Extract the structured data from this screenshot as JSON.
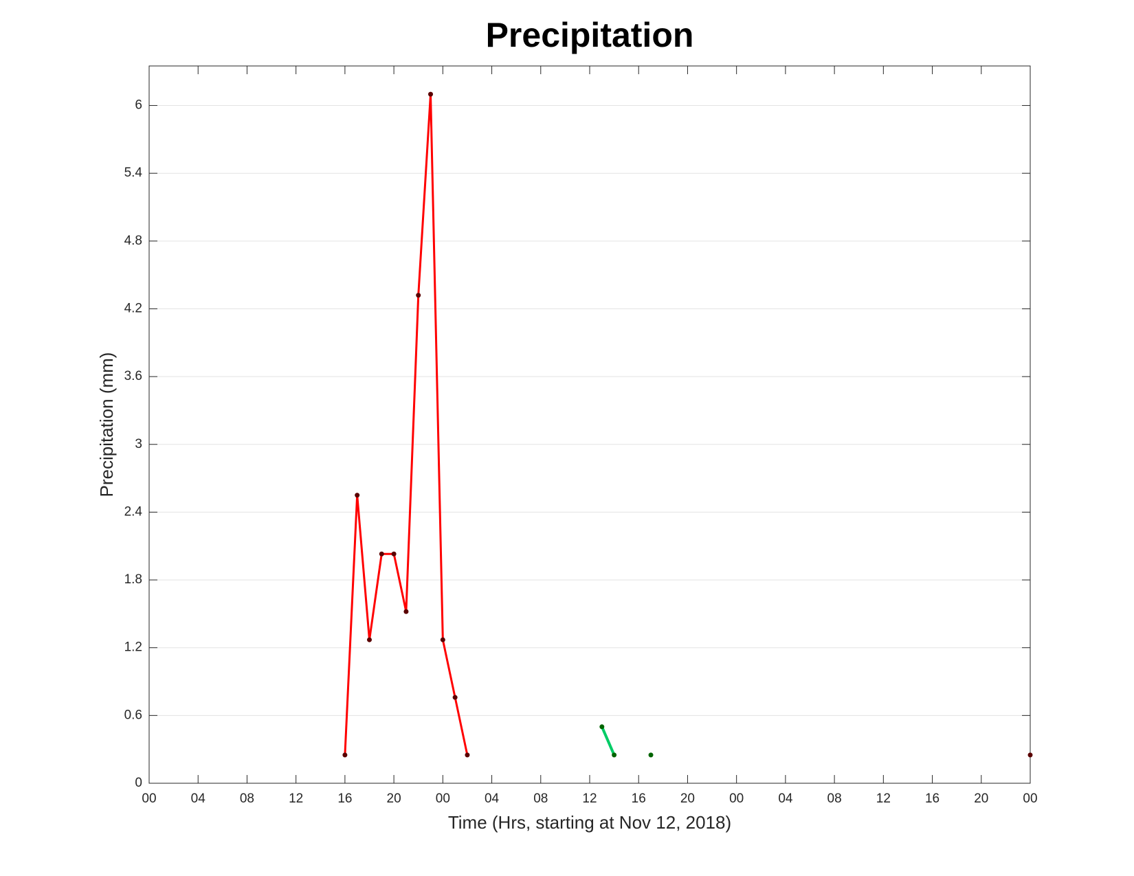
{
  "chart_data": {
    "type": "line",
    "title": "Precipitation",
    "xlabel": "Time (Hrs, starting at Nov 12, 2018)",
    "ylabel": "Precipitation (mm)",
    "xlim": [
      0,
      72
    ],
    "ylim": [
      0,
      6.35
    ],
    "xticks": [
      {
        "value": 0,
        "label": "00"
      },
      {
        "value": 4,
        "label": "04"
      },
      {
        "value": 8,
        "label": "08"
      },
      12,
      16,
      20,
      {
        "value": 24,
        "label": "00"
      },
      {
        "value": 28,
        "label": "04"
      },
      {
        "value": 32,
        "label": "08"
      },
      {
        "value": 36,
        "label": "12"
      },
      {
        "value": 40,
        "label": "16"
      },
      {
        "value": 44,
        "label": "20"
      },
      {
        "value": 48,
        "label": "00"
      },
      {
        "value": 52,
        "label": "04"
      },
      {
        "value": 56,
        "label": "08"
      },
      {
        "value": 60,
        "label": "12"
      },
      {
        "value": 64,
        "label": "16"
      },
      {
        "value": 68,
        "label": "20"
      },
      {
        "value": 72,
        "label": "00"
      }
    ],
    "yticks": [
      0,
      0.6,
      1.2,
      1.8,
      2.4,
      3,
      3.6,
      4.2,
      4.8,
      5.4,
      6
    ],
    "grid": true,
    "series": [
      {
        "color": "#ff0000",
        "marker_color": "#5a0000",
        "x": [
          16,
          17,
          18,
          19,
          20,
          21,
          22,
          23,
          24,
          25,
          26,
          27,
          72
        ],
        "values": [
          0.25,
          2.55,
          1.27,
          2.03,
          2.03,
          1.52,
          4.32,
          6.1,
          1.27,
          0.76,
          0.25,
          null,
          0.25
        ]
      },
      {
        "color": "#00cc66",
        "marker_color": "#006400",
        "x": [
          37,
          38,
          39,
          40,
          41
        ],
        "values": [
          0.5,
          0.25,
          null,
          null,
          0.25
        ]
      }
    ]
  }
}
